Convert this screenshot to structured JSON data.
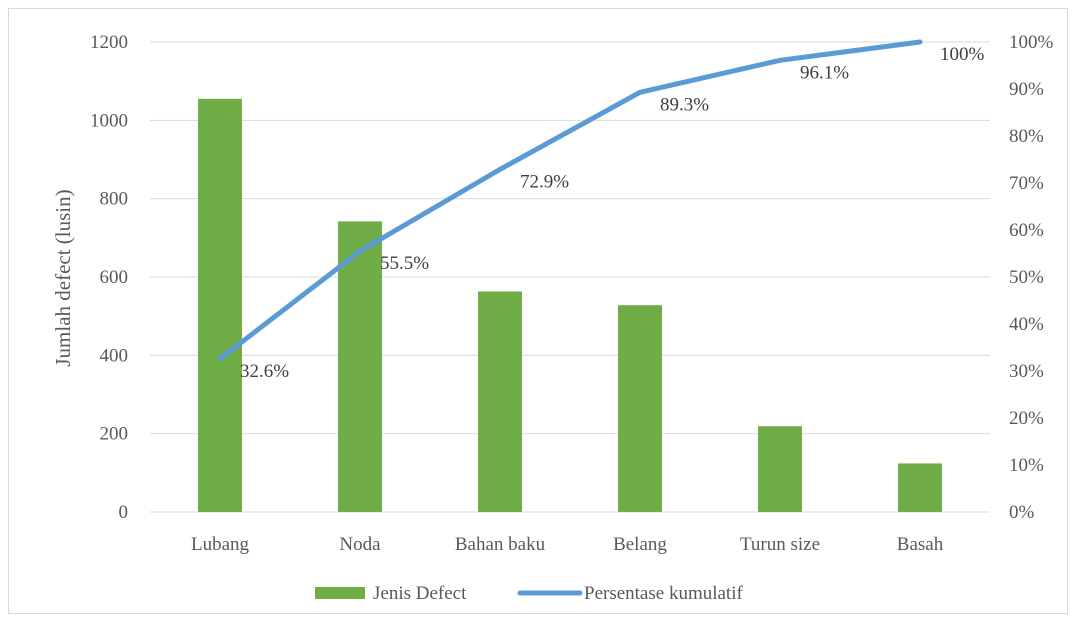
{
  "chart_data": {
    "type": "bar",
    "categories": [
      "Lubang",
      "Noda",
      "Bahan baku",
      "Belang",
      "Turun size",
      "Basah"
    ],
    "series": [
      {
        "name": "Jenis Defect",
        "type": "bar",
        "axis": "left",
        "color": "#70ad47",
        "values": [
          1055,
          742,
          563,
          528,
          219,
          124
        ]
      },
      {
        "name": "Persentase kumulatif",
        "type": "line",
        "axis": "right",
        "color": "#5b9bd5",
        "values": [
          32.6,
          55.5,
          72.9,
          89.3,
          96.1,
          100
        ],
        "data_labels": [
          "32.6%",
          "55.5%",
          "72.9%",
          "89.3%",
          "96.1%",
          "100%"
        ]
      }
    ],
    "ylabel": "Jumlah defect (lusin)",
    "ylim": [
      0,
      1200
    ],
    "y_ticks": [
      "0",
      "200",
      "400",
      "600",
      "800",
      "1000",
      "1200"
    ],
    "y2lim": [
      0,
      100
    ],
    "y2_ticks": [
      "0%",
      "10%",
      "20%",
      "30%",
      "40%",
      "50%",
      "60%",
      "70%",
      "80%",
      "90%",
      "100%"
    ],
    "grid": true,
    "legend": "bottom"
  }
}
